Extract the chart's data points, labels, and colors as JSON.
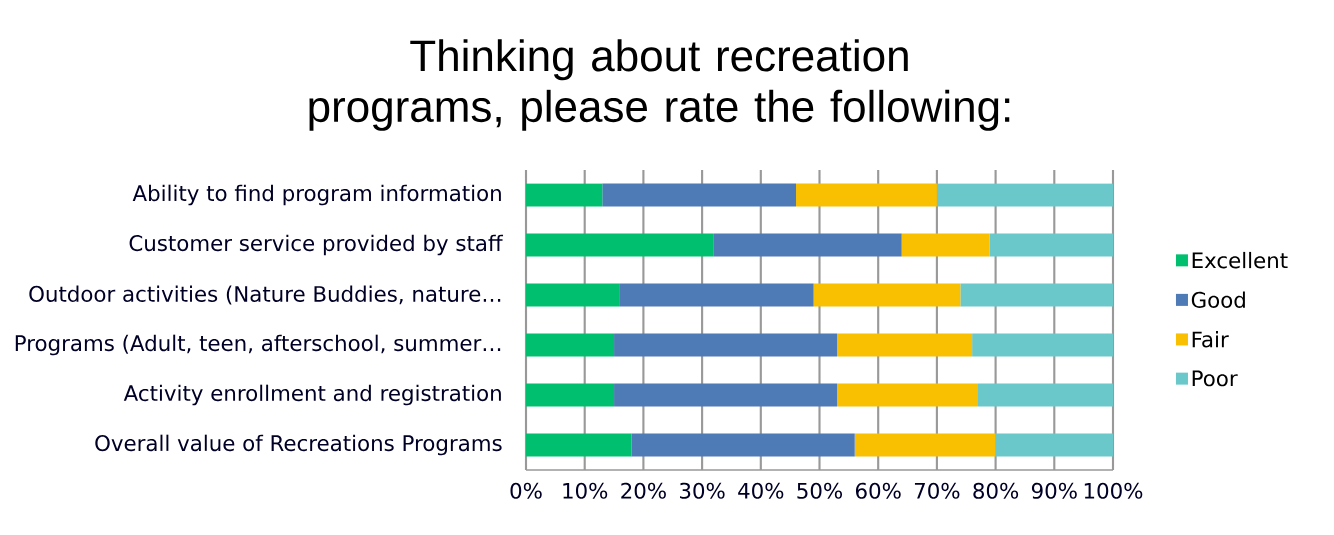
{
  "chart_data": {
    "type": "bar",
    "orientation": "horizontal",
    "stacked": true,
    "title": "Thinking about recreation programs, please rate the following:",
    "categories": [
      "Ability to find program information",
      "Customer service provided by staff",
      "Outdoor activities (Nature Buddies, nature…",
      "Programs (Adult, teen, afterschool, summer…",
      "Activity enrollment and registration",
      "Overall value of Recreations Programs"
    ],
    "series": [
      {
        "name": "Excellent",
        "color": "#00bf6f",
        "values": [
          13,
          32,
          16,
          15,
          15,
          18
        ]
      },
      {
        "name": "Good",
        "color": "#4e7ab5",
        "values": [
          33,
          32,
          33,
          38,
          38,
          38
        ]
      },
      {
        "name": "Fair",
        "color": "#f8c000",
        "values": [
          24,
          15,
          25,
          23,
          24,
          24
        ]
      },
      {
        "name": "Poor",
        "color": "#6ac8cb",
        "values": [
          30,
          21,
          26,
          24,
          23,
          20
        ]
      }
    ],
    "xlim": [
      0,
      100
    ],
    "xticks": [
      {
        "value": 0,
        "label": "0%"
      },
      {
        "value": 10,
        "label": "10%"
      },
      {
        "value": 20,
        "label": "20%"
      },
      {
        "value": 30,
        "label": "30%"
      },
      {
        "value": 40,
        "label": "40%"
      },
      {
        "value": 50,
        "label": "50%"
      },
      {
        "value": 60,
        "label": "60%"
      },
      {
        "value": 70,
        "label": "70%"
      },
      {
        "value": 80,
        "label": "80%"
      },
      {
        "value": 90,
        "label": "90%"
      },
      {
        "value": 100,
        "label": "100%"
      }
    ],
    "grid": "x",
    "legend": "right"
  }
}
